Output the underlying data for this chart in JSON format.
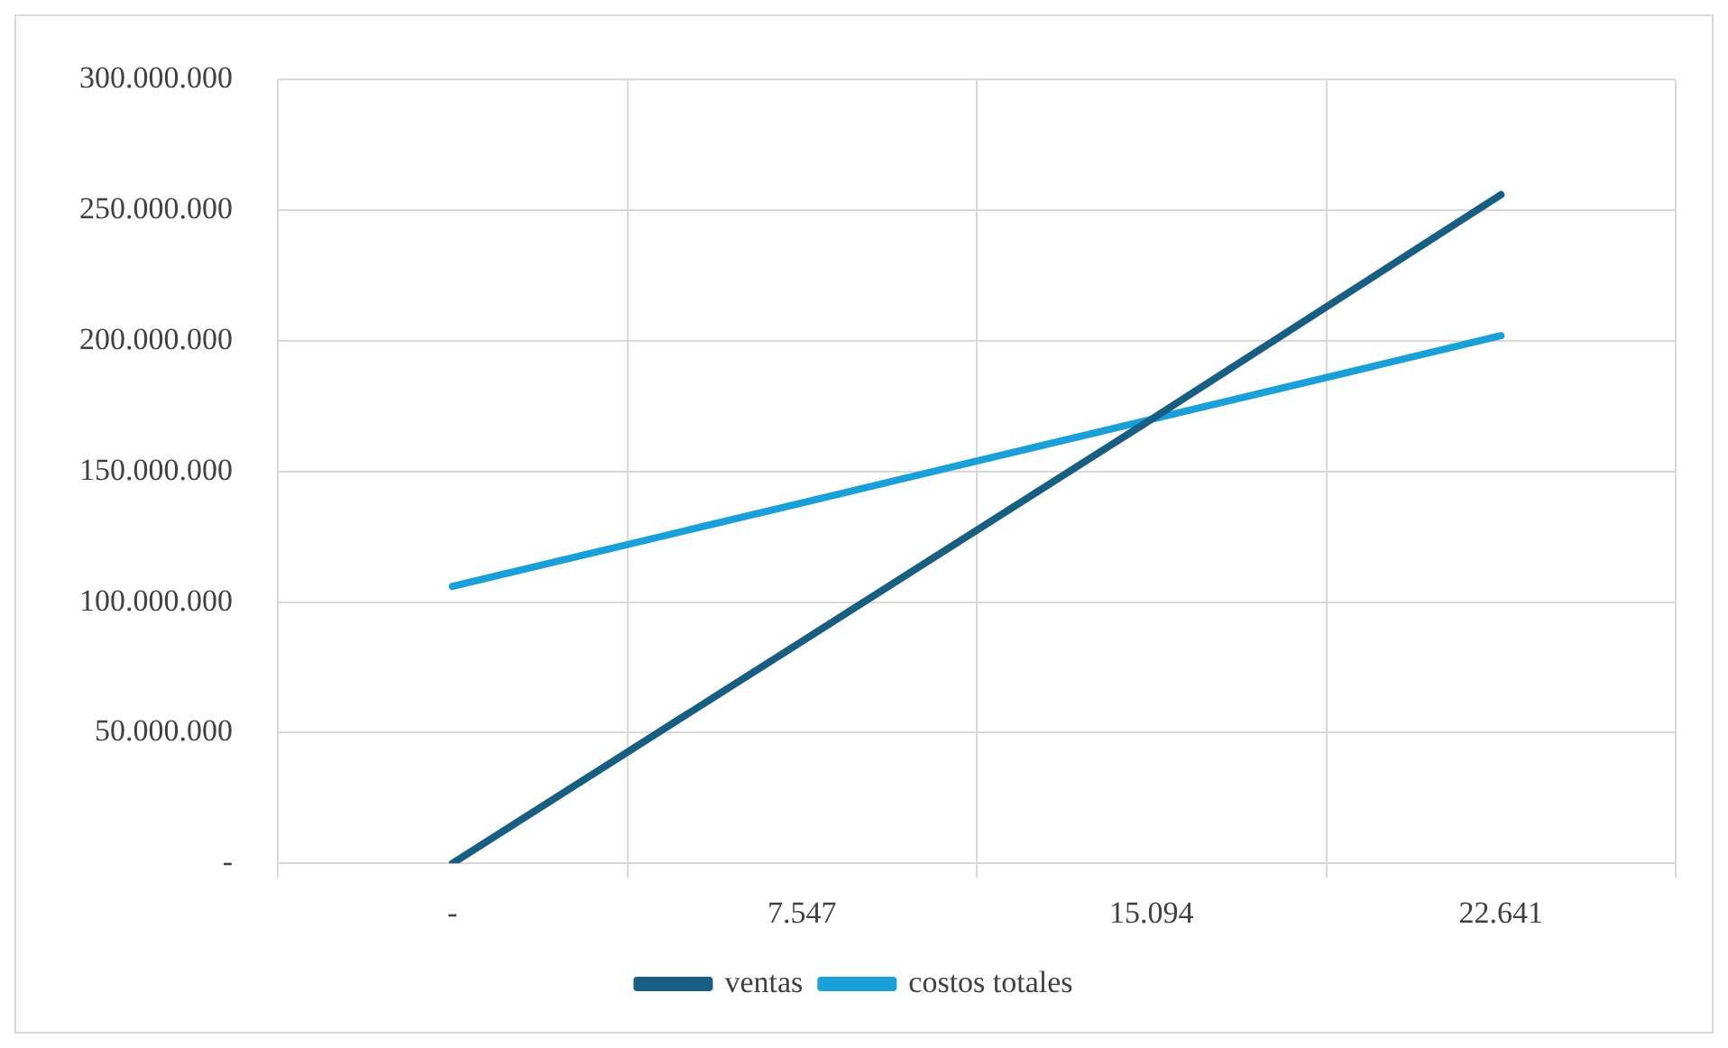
{
  "chart_data": {
    "type": "line",
    "categories": [
      "-",
      "7.547",
      "15.094",
      "22.641"
    ],
    "series": [
      {
        "name": "ventas",
        "color": "#175e82",
        "values": [
          0,
          85000000,
          170000000,
          256000000
        ]
      },
      {
        "name": "costos totales",
        "color": "#1aa0d8",
        "values": [
          106000000,
          138000000,
          170000000,
          202000000
        ]
      }
    ],
    "ylim": [
      0,
      300000000
    ],
    "yticks": [
      {
        "value": 0,
        "label": "-"
      },
      {
        "value": 50000000,
        "label": "50.000.000"
      },
      {
        "value": 100000000,
        "label": "100.000.000"
      },
      {
        "value": 150000000,
        "label": "150.000.000"
      },
      {
        "value": 200000000,
        "label": "200.000.000"
      },
      {
        "value": 250000000,
        "label": "250.000.000"
      },
      {
        "value": 300000000,
        "label": "300.000.000"
      }
    ],
    "grid": true,
    "legend": "bottom",
    "marker": "none",
    "line_style": "solid"
  }
}
